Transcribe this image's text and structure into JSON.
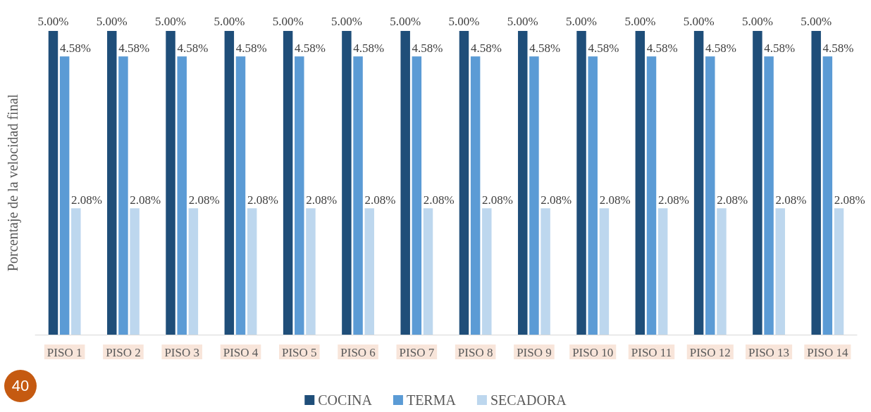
{
  "chart_data": {
    "type": "bar",
    "ylabel": "Porcentaje de la velocidad final",
    "categories": [
      "PISO 1",
      "PISO 2",
      "PISO 3",
      "PISO 4",
      "PISO 5",
      "PISO 6",
      "PISO 7",
      "PISO 8",
      "PISO 9",
      "PISO 10",
      "PISO 11",
      "PISO 12",
      "PISO 13",
      "PISO 14"
    ],
    "series": [
      {
        "name": "COCINA",
        "color": "#1f4e79",
        "values": [
          5,
          5,
          5,
          5,
          5,
          5,
          5,
          5,
          5,
          5,
          5,
          5,
          5,
          5
        ],
        "value_labels": [
          "5.00%",
          "5.00%",
          "5.00%",
          "5.00%",
          "5.00%",
          "5.00%",
          "5.00%",
          "5.00%",
          "5.00%",
          "5.00%",
          "5.00%",
          "5.00%",
          "5.00%",
          "5.00%"
        ]
      },
      {
        "name": "TERMA",
        "color": "#5b9bd5",
        "values": [
          4.58,
          4.58,
          4.58,
          4.58,
          4.58,
          4.58,
          4.58,
          4.58,
          4.58,
          4.58,
          4.58,
          4.58,
          4.58,
          4.58
        ],
        "value_labels": [
          "4.58%",
          "4.58%",
          "4.58%",
          "4.58%",
          "4.58%",
          "4.58%",
          "4.58%",
          "4.58%",
          "4.58%",
          "4.58%",
          "4.58%",
          "4.58%",
          "4.58%",
          "4.58%"
        ]
      },
      {
        "name": "SECADORA",
        "color": "#bdd7ee",
        "values": [
          2.08,
          2.08,
          2.08,
          2.08,
          2.08,
          2.08,
          2.08,
          2.08,
          2.08,
          2.08,
          2.08,
          2.08,
          2.08,
          2.08
        ],
        "value_labels": [
          "2.08%",
          "2.08%",
          "2.08%",
          "2.08%",
          "2.08%",
          "2.08%",
          "2.08%",
          "2.08%",
          "2.08%",
          "2.08%",
          "2.08%",
          "2.08%",
          "2.08%",
          "2.08%"
        ]
      }
    ],
    "legend": "bottom",
    "grid": false,
    "annotations": [
      "40"
    ]
  }
}
